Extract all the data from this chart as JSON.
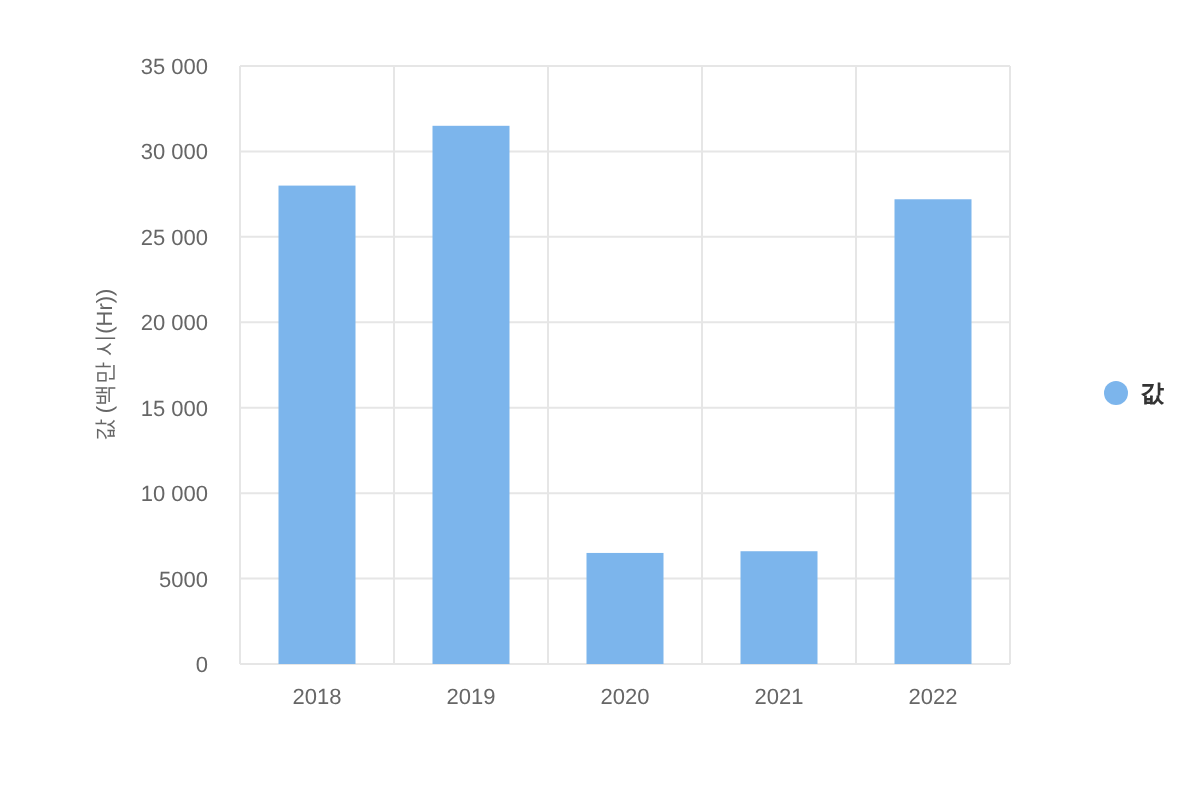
{
  "chart_data": {
    "type": "bar",
    "categories": [
      "2018",
      "2019",
      "2020",
      "2021",
      "2022"
    ],
    "series": [
      {
        "name": "값",
        "color": "#7cb5ec",
        "values": [
          28000,
          31500,
          6500,
          6600,
          27200
        ]
      }
    ],
    "ylabel": "값 (백만 시(Hr))",
    "ylim": [
      0,
      35000
    ],
    "yticks": [
      0,
      5000,
      {
        "value": 10000,
        "label": "10 000"
      },
      {
        "value": 15000,
        "label": "15 000"
      },
      {
        "value": 20000,
        "label": "20 000"
      },
      {
        "value": 25000,
        "label": "25 000"
      },
      {
        "value": 30000,
        "label": "30 000"
      },
      {
        "value": 35000,
        "label": "35 000"
      }
    ],
    "grid": true,
    "legend": "right"
  }
}
